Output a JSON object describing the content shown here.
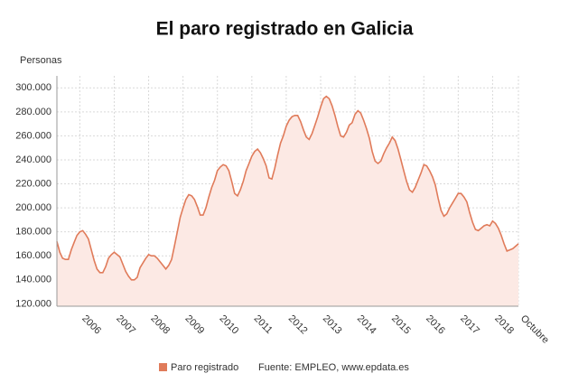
{
  "chart_data": {
    "type": "area",
    "title": "El paro registrado en Galicia",
    "y_label": "Personas",
    "source": "Fuente: EMPLEO, www.epdata.es",
    "categories": [
      null,
      null,
      null,
      null,
      null,
      null,
      null,
      null,
      "2006",
      null,
      null,
      null,
      null,
      null,
      null,
      null,
      null,
      null,
      null,
      null,
      "2007",
      null,
      null,
      null,
      null,
      null,
      null,
      null,
      null,
      null,
      null,
      null,
      "2008",
      null,
      null,
      null,
      null,
      null,
      null,
      null,
      null,
      null,
      null,
      null,
      "2009",
      null,
      null,
      null,
      null,
      null,
      null,
      null,
      null,
      null,
      null,
      null,
      "2010",
      null,
      null,
      null,
      null,
      null,
      null,
      null,
      null,
      null,
      null,
      null,
      "2011",
      null,
      null,
      null,
      null,
      null,
      null,
      null,
      null,
      null,
      null,
      null,
      "2012",
      null,
      null,
      null,
      null,
      null,
      null,
      null,
      null,
      null,
      null,
      null,
      "2013",
      null,
      null,
      null,
      null,
      null,
      null,
      null,
      null,
      null,
      null,
      null,
      "2014",
      null,
      null,
      null,
      null,
      null,
      null,
      null,
      null,
      null,
      null,
      null,
      "2015",
      null,
      null,
      null,
      null,
      null,
      null,
      null,
      null,
      null,
      null,
      null,
      "2016",
      null,
      null,
      null,
      null,
      null,
      null,
      null,
      null,
      null,
      null,
      null,
      "2017",
      null,
      null,
      null,
      null,
      null,
      null,
      null,
      null,
      null,
      null,
      null,
      "2018",
      null,
      null,
      null,
      null,
      null,
      null,
      null,
      null,
      "Octubre"
    ],
    "series": [
      {
        "name": "Paro registrado",
        "color": "#e07b5a",
        "fill": "#fce9e4",
        "values": [
          172000,
          163000,
          158000,
          157000,
          157000,
          165000,
          171000,
          177000,
          180000,
          181000,
          178000,
          174000,
          165000,
          156000,
          149000,
          146000,
          146000,
          151000,
          158000,
          161000,
          163000,
          161000,
          159000,
          153000,
          147000,
          143000,
          140000,
          140000,
          142000,
          150000,
          154000,
          158000,
          161000,
          160000,
          160000,
          158000,
          155000,
          152000,
          149000,
          152000,
          157000,
          168000,
          180000,
          192000,
          200000,
          207000,
          211000,
          210000,
          207000,
          201000,
          194000,
          194000,
          200000,
          209000,
          217000,
          223000,
          231000,
          234000,
          236000,
          235000,
          231000,
          222000,
          212000,
          210000,
          215000,
          222000,
          231000,
          237000,
          243000,
          247000,
          249000,
          246000,
          241000,
          235000,
          225000,
          224000,
          233000,
          244000,
          254000,
          260000,
          268000,
          273000,
          276000,
          277000,
          277000,
          272000,
          265000,
          259000,
          257000,
          262000,
          269000,
          276000,
          284000,
          291000,
          293000,
          291000,
          285000,
          277000,
          268000,
          260000,
          259000,
          263000,
          269000,
          271000,
          278000,
          281000,
          279000,
          273000,
          266000,
          258000,
          247000,
          239000,
          237000,
          239000,
          245000,
          250000,
          254000,
          259000,
          256000,
          249000,
          240000,
          231000,
          222000,
          215000,
          213000,
          217000,
          223000,
          229000,
          236000,
          235000,
          231000,
          226000,
          219000,
          208000,
          198000,
          193000,
          195000,
          200000,
          204000,
          208000,
          212000,
          212000,
          209000,
          205000,
          196000,
          188000,
          182000,
          181000,
          183000,
          185000,
          186000,
          185000,
          189000,
          187000,
          183000,
          177000,
          170000,
          164000,
          165000,
          166000,
          168000,
          170000
        ]
      }
    ],
    "ylim": [
      118000,
      310000
    ],
    "yticks": [
      {
        "value": 120000,
        "label": "120.000"
      },
      {
        "value": 140000,
        "label": "140.000"
      },
      {
        "value": 160000,
        "label": "160.000"
      },
      {
        "value": 180000,
        "label": "180.000"
      },
      {
        "value": 200000,
        "label": "200.000"
      },
      {
        "value": 220000,
        "label": "220.000"
      },
      {
        "value": 240000,
        "label": "240.000"
      },
      {
        "value": 260000,
        "label": "260.000"
      },
      {
        "value": 280000,
        "label": "280.000"
      },
      {
        "value": 300000,
        "label": "300.000"
      }
    ],
    "grid": true,
    "legend": "bottom"
  }
}
